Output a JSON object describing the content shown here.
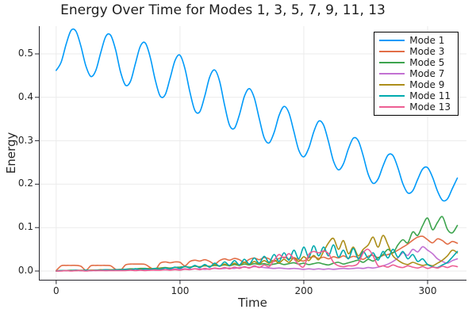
{
  "chart_data": {
    "type": "line",
    "title": "Energy Over Time for Modes 1, 3, 5, 7, 9, 11, 13",
    "xlabel": "Time",
    "ylabel": "Energy",
    "xlim": [
      -14,
      331.4
    ],
    "ylim": [
      -0.0201,
      0.5639
    ],
    "xticks": {
      "values": [
        0,
        100,
        200,
        300
      ],
      "labels": [
        "0",
        "100",
        "200",
        "300"
      ]
    },
    "yticks": {
      "values": [
        0.0,
        0.1,
        0.2,
        0.3,
        0.4,
        0.5
      ],
      "labels": [
        "0.0",
        "0.1",
        "0.2",
        "0.3",
        "0.4",
        "0.5"
      ]
    },
    "grid": true,
    "legend_position": "top-right",
    "colors": {
      "grid": "#ebebeb",
      "axis": "#26262d",
      "text": "#262626",
      "background": "#ffffff"
    },
    "t_start": 0,
    "t_step": 4,
    "series": [
      {
        "name": "Mode 1",
        "color": "#009af9",
        "values": [
          0.462,
          0.481,
          0.522,
          0.554,
          0.552,
          0.517,
          0.472,
          0.448,
          0.462,
          0.503,
          0.54,
          0.543,
          0.509,
          0.458,
          0.428,
          0.437,
          0.478,
          0.518,
          0.525,
          0.492,
          0.44,
          0.403,
          0.406,
          0.444,
          0.485,
          0.497,
          0.466,
          0.412,
          0.37,
          0.367,
          0.403,
          0.447,
          0.463,
          0.437,
          0.382,
          0.336,
          0.329,
          0.36,
          0.402,
          0.42,
          0.399,
          0.351,
          0.307,
          0.295,
          0.319,
          0.358,
          0.379,
          0.364,
          0.321,
          0.278,
          0.263,
          0.283,
          0.32,
          0.345,
          0.336,
          0.297,
          0.253,
          0.233,
          0.247,
          0.281,
          0.306,
          0.3,
          0.265,
          0.223,
          0.202,
          0.212,
          0.242,
          0.267,
          0.266,
          0.238,
          0.201,
          0.18,
          0.185,
          0.211,
          0.235,
          0.238,
          0.216,
          0.184,
          0.163,
          0.166,
          0.19,
          0.214
        ]
      },
      {
        "name": "Mode 3",
        "color": "#e26e47",
        "values": [
          0.001,
          0.012,
          0.013,
          0.013,
          0.013,
          0.011,
          0.002,
          0.012,
          0.013,
          0.013,
          0.013,
          0.012,
          0.004,
          0.002,
          0.014,
          0.016,
          0.016,
          0.016,
          0.015,
          0.008,
          0.003,
          0.018,
          0.021,
          0.019,
          0.021,
          0.02,
          0.012,
          0.022,
          0.025,
          0.023,
          0.026,
          0.022,
          0.016,
          0.024,
          0.028,
          0.025,
          0.029,
          0.026,
          0.02,
          0.027,
          0.03,
          0.026,
          0.031,
          0.028,
          0.022,
          0.029,
          0.032,
          0.028,
          0.031,
          0.026,
          0.023,
          0.03,
          0.033,
          0.029,
          0.032,
          0.028,
          0.033,
          0.03,
          0.035,
          0.03,
          0.034,
          0.031,
          0.027,
          0.034,
          0.036,
          0.031,
          0.036,
          0.038,
          0.042,
          0.048,
          0.055,
          0.062,
          0.071,
          0.078,
          0.08,
          0.072,
          0.065,
          0.074,
          0.07,
          0.062,
          0.068,
          0.064
        ]
      },
      {
        "name": "Mode 5",
        "color": "#3da44e",
        "values": [
          0.0,
          0.001,
          0.001,
          0.001,
          0.002,
          0.001,
          0.001,
          0.002,
          0.002,
          0.002,
          0.003,
          0.003,
          0.002,
          0.003,
          0.004,
          0.005,
          0.005,
          0.006,
          0.006,
          0.005,
          0.006,
          0.007,
          0.008,
          0.007,
          0.008,
          0.009,
          0.01,
          0.009,
          0.011,
          0.01,
          0.012,
          0.011,
          0.013,
          0.012,
          0.014,
          0.012,
          0.015,
          0.013,
          0.016,
          0.014,
          0.017,
          0.015,
          0.017,
          0.014,
          0.016,
          0.018,
          0.015,
          0.017,
          0.019,
          0.016,
          0.018,
          0.015,
          0.017,
          0.019,
          0.016,
          0.014,
          0.018,
          0.02,
          0.016,
          0.019,
          0.022,
          0.025,
          0.02,
          0.027,
          0.023,
          0.03,
          0.038,
          0.05,
          0.042,
          0.06,
          0.072,
          0.065,
          0.09,
          0.082,
          0.105,
          0.122,
          0.095,
          0.112,
          0.125,
          0.096,
          0.088,
          0.105
        ]
      },
      {
        "name": "Mode 7",
        "color": "#c271d2",
        "values": [
          0.0,
          0.001,
          0.001,
          0.001,
          0.001,
          0.001,
          0.001,
          0.001,
          0.001,
          0.002,
          0.001,
          0.002,
          0.002,
          0.002,
          0.002,
          0.003,
          0.002,
          0.003,
          0.003,
          0.003,
          0.003,
          0.004,
          0.003,
          0.004,
          0.004,
          0.004,
          0.005,
          0.004,
          0.005,
          0.005,
          0.004,
          0.005,
          0.006,
          0.005,
          0.006,
          0.007,
          0.006,
          0.008,
          0.009,
          0.008,
          0.01,
          0.009,
          0.008,
          0.007,
          0.006,
          0.007,
          0.006,
          0.005,
          0.006,
          0.005,
          0.004,
          0.005,
          0.004,
          0.005,
          0.004,
          0.005,
          0.004,
          0.005,
          0.006,
          0.005,
          0.006,
          0.007,
          0.006,
          0.008,
          0.007,
          0.009,
          0.012,
          0.016,
          0.022,
          0.03,
          0.042,
          0.036,
          0.05,
          0.044,
          0.056,
          0.048,
          0.04,
          0.028,
          0.022,
          0.018,
          0.024,
          0.028
        ]
      },
      {
        "name": "Mode 9",
        "color": "#ac8e1a",
        "values": [
          0.0,
          0.001,
          0.001,
          0.002,
          0.001,
          0.002,
          0.001,
          0.002,
          0.002,
          0.003,
          0.002,
          0.003,
          0.003,
          0.004,
          0.003,
          0.004,
          0.005,
          0.004,
          0.005,
          0.006,
          0.005,
          0.006,
          0.007,
          0.006,
          0.008,
          0.007,
          0.01,
          0.008,
          0.012,
          0.009,
          0.013,
          0.01,
          0.015,
          0.011,
          0.016,
          0.012,
          0.018,
          0.013,
          0.02,
          0.015,
          0.022,
          0.016,
          0.024,
          0.018,
          0.025,
          0.019,
          0.027,
          0.02,
          0.03,
          0.022,
          0.033,
          0.024,
          0.036,
          0.026,
          0.045,
          0.065,
          0.075,
          0.05,
          0.07,
          0.04,
          0.055,
          0.035,
          0.05,
          0.06,
          0.078,
          0.055,
          0.082,
          0.06,
          0.035,
          0.025,
          0.018,
          0.015,
          0.02,
          0.016,
          0.013,
          0.015,
          0.012,
          0.018,
          0.025,
          0.035,
          0.048,
          0.042
        ]
      },
      {
        "name": "Mode 11",
        "color": "#00aaae",
        "values": [
          0.0,
          0.001,
          0.001,
          0.001,
          0.002,
          0.001,
          0.002,
          0.001,
          0.002,
          0.002,
          0.003,
          0.002,
          0.003,
          0.003,
          0.004,
          0.003,
          0.005,
          0.003,
          0.005,
          0.004,
          0.006,
          0.004,
          0.007,
          0.005,
          0.009,
          0.006,
          0.011,
          0.007,
          0.013,
          0.008,
          0.015,
          0.009,
          0.018,
          0.011,
          0.021,
          0.013,
          0.024,
          0.014,
          0.027,
          0.016,
          0.03,
          0.018,
          0.034,
          0.02,
          0.038,
          0.022,
          0.042,
          0.025,
          0.048,
          0.028,
          0.055,
          0.032,
          0.058,
          0.035,
          0.055,
          0.035,
          0.06,
          0.032,
          0.048,
          0.028,
          0.052,
          0.028,
          0.045,
          0.03,
          0.042,
          0.025,
          0.045,
          0.03,
          0.05,
          0.032,
          0.045,
          0.028,
          0.038,
          0.022,
          0.028,
          0.015,
          0.01,
          0.008,
          0.014,
          0.02,
          0.032,
          0.045
        ]
      },
      {
        "name": "Mode 13",
        "color": "#ed5e93",
        "values": [
          0.0,
          0.0,
          0.001,
          0.0,
          0.001,
          0.001,
          0.0,
          0.001,
          0.001,
          0.001,
          0.001,
          0.001,
          0.001,
          0.001,
          0.001,
          0.002,
          0.001,
          0.002,
          0.001,
          0.002,
          0.002,
          0.002,
          0.003,
          0.002,
          0.003,
          0.002,
          0.004,
          0.003,
          0.005,
          0.003,
          0.006,
          0.004,
          0.007,
          0.005,
          0.008,
          0.005,
          0.009,
          0.006,
          0.01,
          0.007,
          0.012,
          0.008,
          0.014,
          0.01,
          0.025,
          0.038,
          0.03,
          0.04,
          0.028,
          0.015,
          0.01,
          0.038,
          0.045,
          0.042,
          0.046,
          0.04,
          0.02,
          0.012,
          0.01,
          0.012,
          0.012,
          0.018,
          0.042,
          0.05,
          0.035,
          0.012,
          0.012,
          0.009,
          0.014,
          0.01,
          0.008,
          0.012,
          0.009,
          0.007,
          0.01,
          0.006,
          0.009,
          0.007,
          0.011,
          0.008,
          0.012,
          0.01
        ]
      }
    ]
  }
}
